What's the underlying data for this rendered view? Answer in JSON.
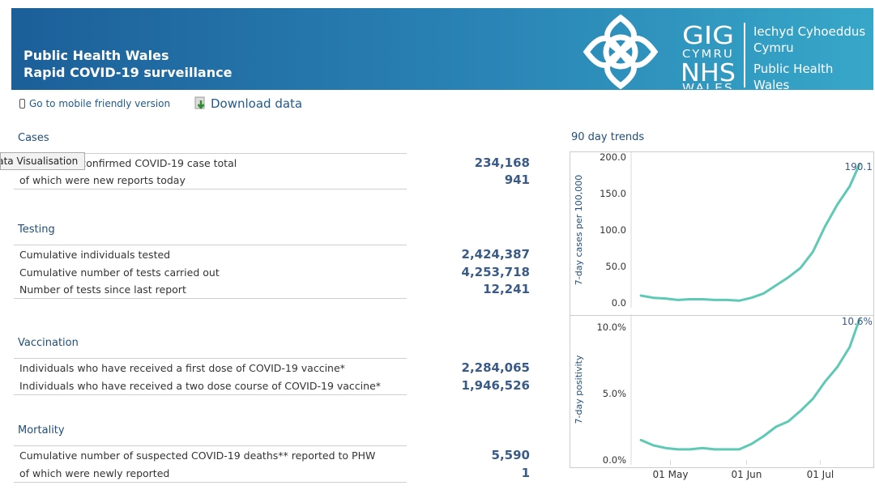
{
  "header": {
    "line1": "Public Health Wales",
    "line2": "Rapid COVID-19 surveillance",
    "logo": {
      "gig": "GIG",
      "cymru": "CYMRU",
      "nhs": "NHS",
      "wales": "WALES",
      "org_welsh_1": "Iechyd Cyhoeddus",
      "org_welsh_2": "Cymru",
      "org_english_1": "Public Health",
      "org_english_2": "Wales"
    }
  },
  "toolbar": {
    "mobile_link": "Go to mobile friendly version",
    "download_label": "Download data"
  },
  "tooltip": "Data Visualisation",
  "cases": {
    "title": "Cases",
    "rows": [
      {
        "label": "Cumulative confirmed COVID-19 case total",
        "value": "234,168"
      },
      {
        "label": "of which were new reports today",
        "value": "941"
      }
    ]
  },
  "testing": {
    "title": "Testing",
    "rows": [
      {
        "label": "Cumulative individuals tested",
        "value": "2,424,387"
      },
      {
        "label": "Cumulative number of tests carried out",
        "value": "4,253,718"
      },
      {
        "label": "Number of tests since last report",
        "value": "12,241"
      }
    ]
  },
  "vaccination": {
    "title": "Vaccination",
    "rows": [
      {
        "label": "Individuals who have received a first dose of COVID-19 vaccine*",
        "value": "2,284,065"
      },
      {
        "label": "Individuals who have received a two dose course of COVID-19 vaccine*",
        "value": "1,946,526"
      }
    ]
  },
  "mortality": {
    "title": "Mortality",
    "rows": [
      {
        "label": "Cumulative number of suspected COVID-19 deaths** reported to PHW",
        "value": "5,590"
      },
      {
        "label": "of which were newly reported",
        "value": "1"
      }
    ]
  },
  "colors": {
    "line": "#5ec9b4",
    "accent": "#3a5b87",
    "title": "#1f4e79"
  },
  "trends": {
    "title": "90 day trends",
    "x_ticks": [
      "01 May",
      "01 Jun",
      "01 Jul"
    ]
  },
  "chart_data": [
    {
      "type": "line",
      "ylabel": "7-day cases per 100,000",
      "ylim": [
        0,
        200
      ],
      "yticks": [
        "0.0",
        "50.0",
        "100.0",
        "150.0",
        "200.0"
      ],
      "end_label": "190.1",
      "x": [
        "2021-04-19",
        "2021-04-24",
        "2021-04-29",
        "2021-05-04",
        "2021-05-09",
        "2021-05-14",
        "2021-05-19",
        "2021-05-24",
        "2021-05-29",
        "2021-06-03",
        "2021-06-08",
        "2021-06-13",
        "2021-06-18",
        "2021-06-23",
        "2021-06-28",
        "2021-07-03",
        "2021-07-08",
        "2021-07-13",
        "2021-07-17"
      ],
      "series": [
        {
          "values": [
            10,
            7,
            6,
            4,
            5,
            5,
            4,
            4,
            3,
            7,
            13,
            24,
            35,
            48,
            70,
            105,
            135,
            160,
            190.1
          ]
        }
      ]
    },
    {
      "type": "line",
      "ylabel": "7-day positivity",
      "ylim": [
        0,
        10.6
      ],
      "yticks": [
        "0.0%",
        "5.0%",
        "10.0%"
      ],
      "end_label": "10.6%",
      "x": [
        "2021-04-19",
        "2021-04-24",
        "2021-04-29",
        "2021-05-04",
        "2021-05-09",
        "2021-05-14",
        "2021-05-19",
        "2021-05-24",
        "2021-05-29",
        "2021-06-03",
        "2021-06-08",
        "2021-06-13",
        "2021-06-18",
        "2021-06-23",
        "2021-06-28",
        "2021-07-03",
        "2021-07-08",
        "2021-07-13",
        "2021-07-17"
      ],
      "series": [
        {
          "values": [
            1.5,
            1.1,
            0.9,
            0.8,
            0.8,
            0.9,
            0.8,
            0.8,
            0.8,
            1.2,
            1.8,
            2.5,
            2.9,
            3.7,
            4.6,
            5.9,
            7.0,
            8.5,
            10.6
          ]
        }
      ]
    }
  ]
}
